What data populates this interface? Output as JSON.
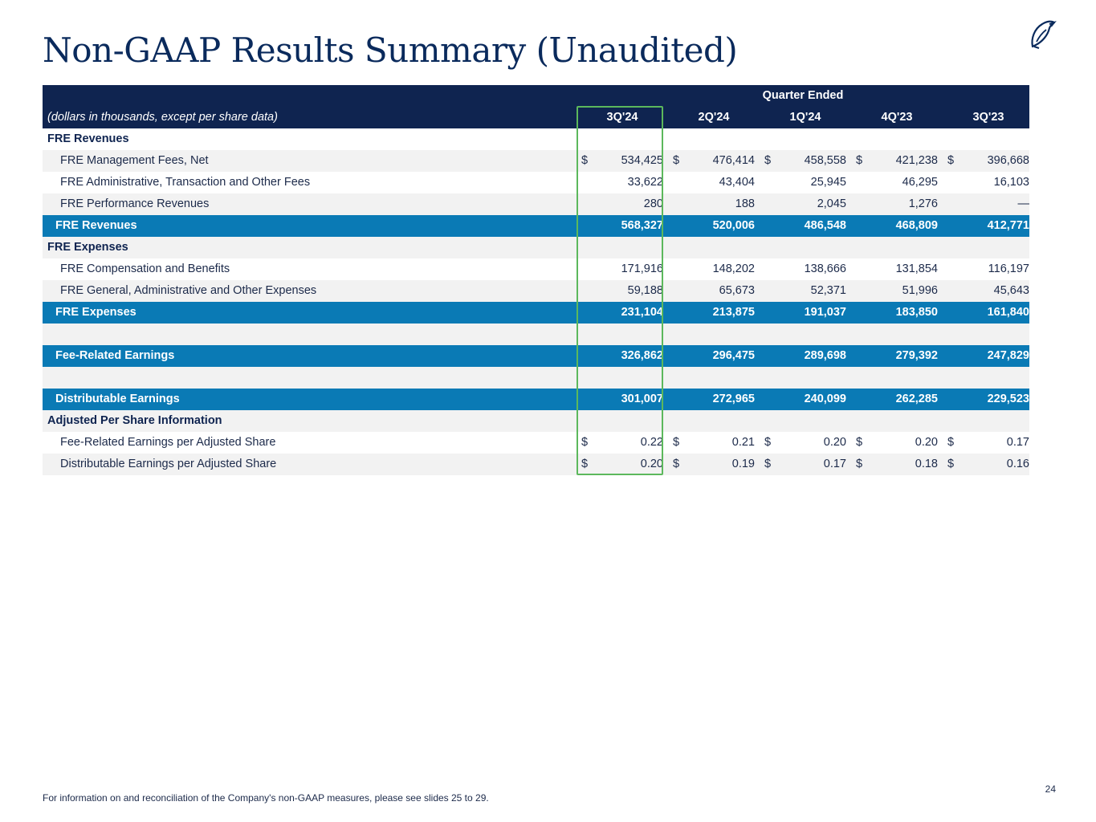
{
  "title": "Non-GAAP Results Summary (Unaudited)",
  "colors": {
    "navy": "#0f2450",
    "blue": "#0a7ab5",
    "highlight": "#5cb85c"
  },
  "table": {
    "group_header": "Quarter Ended",
    "caption": "(dollars in thousands, except per share data)",
    "columns": [
      "3Q'24",
      "2Q'24",
      "1Q'24",
      "4Q'23",
      "3Q'23"
    ],
    "rows": [
      {
        "type": "section",
        "label": "FRE Revenues",
        "values": []
      },
      {
        "type": "item",
        "label": "FRE Management Fees, Net",
        "dollar": true,
        "values": [
          "534,425",
          "476,414",
          "458,558",
          "421,238",
          "396,668"
        ]
      },
      {
        "type": "item",
        "label": "FRE Administrative, Transaction and Other Fees",
        "dollar": false,
        "values": [
          "33,622",
          "43,404",
          "25,945",
          "46,295",
          "16,103"
        ]
      },
      {
        "type": "item",
        "label": "FRE Performance Revenues",
        "dollar": false,
        "values": [
          "280",
          "188",
          "2,045",
          "1,276",
          "—"
        ]
      },
      {
        "type": "total",
        "label": "FRE Revenues",
        "values": [
          "568,327",
          "520,006",
          "486,548",
          "468,809",
          "412,771"
        ]
      },
      {
        "type": "section",
        "label": "FRE Expenses",
        "values": []
      },
      {
        "type": "item",
        "label": "FRE Compensation and Benefits",
        "dollar": false,
        "values": [
          "171,916",
          "148,202",
          "138,666",
          "131,854",
          "116,197"
        ]
      },
      {
        "type": "item",
        "label": "FRE General, Administrative and Other Expenses",
        "dollar": false,
        "values": [
          "59,188",
          "65,673",
          "52,371",
          "51,996",
          "45,643"
        ]
      },
      {
        "type": "total",
        "label": "FRE Expenses",
        "values": [
          "231,104",
          "213,875",
          "191,037",
          "183,850",
          "161,840"
        ]
      },
      {
        "type": "blank",
        "label": "",
        "values": []
      },
      {
        "type": "total",
        "label": "Fee-Related Earnings",
        "values": [
          "326,862",
          "296,475",
          "289,698",
          "279,392",
          "247,829"
        ]
      },
      {
        "type": "blank",
        "label": "",
        "values": []
      },
      {
        "type": "total",
        "label": "Distributable Earnings",
        "values": [
          "301,007",
          "272,965",
          "240,099",
          "262,285",
          "229,523"
        ]
      },
      {
        "type": "section",
        "label": "Adjusted Per Share Information",
        "values": []
      },
      {
        "type": "item",
        "label": "Fee-Related Earnings per Adjusted Share",
        "dollar": true,
        "values": [
          "0.22",
          "0.21",
          "0.20",
          "0.20",
          "0.17"
        ]
      },
      {
        "type": "item",
        "label": "Distributable Earnings per Adjusted Share",
        "dollar": true,
        "values": [
          "0.20",
          "0.19",
          "0.17",
          "0.18",
          "0.16"
        ]
      }
    ]
  },
  "footnote": "For information on and reconciliation of the Company's non-GAAP measures, please see slides 25 to 29.",
  "page_number": "24",
  "dollar_sign": "$"
}
